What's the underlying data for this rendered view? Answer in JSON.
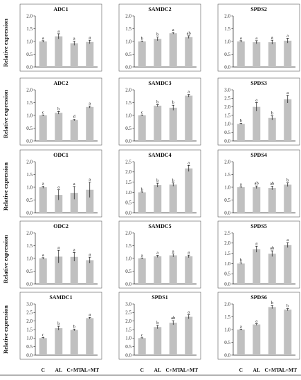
{
  "figure": {
    "ylabel": "Relative expression",
    "categories": [
      "C",
      "AL",
      "C+MT",
      "AL+MT"
    ],
    "bar_color": "#c0c0c0",
    "axis_color": "#222222"
  },
  "chart_data": [
    {
      "type": "bar",
      "title": "ADC1",
      "categories": [
        "C",
        "AL",
        "C+MT",
        "AL+MT"
      ],
      "values": [
        1.0,
        1.2,
        0.93,
        0.98
      ],
      "errors": [
        0.03,
        0.1,
        0.08,
        0.07
      ],
      "letters": [
        "a",
        "a",
        "a",
        "a"
      ],
      "ylim": [
        0,
        2.0
      ],
      "yticks": [
        "0.0",
        "0.5",
        "1.0",
        "1.5",
        "2.0"
      ],
      "row": 0,
      "col": 0
    },
    {
      "type": "bar",
      "title": "SAMDC2",
      "categories": [
        "C",
        "AL",
        "C+MT",
        "AL+MT"
      ],
      "values": [
        1.0,
        1.1,
        1.32,
        1.17
      ],
      "errors": [
        0.02,
        0.07,
        0.03,
        0.05
      ],
      "letters": [
        "b",
        "b",
        "a",
        "ab"
      ],
      "ylim": [
        0,
        2.0
      ],
      "yticks": [
        "0.0",
        "0.5",
        "1.0",
        "1.5",
        "2.0"
      ],
      "row": 0,
      "col": 1
    },
    {
      "type": "bar",
      "title": "SPDS2",
      "categories": [
        "C",
        "AL",
        "C+MT",
        "AL+MT"
      ],
      "values": [
        1.0,
        0.97,
        0.97,
        1.03
      ],
      "errors": [
        0.03,
        0.06,
        0.08,
        0.09
      ],
      "letters": [
        "a",
        "a",
        "a",
        "a"
      ],
      "ylim": [
        0,
        2.0
      ],
      "yticks": [
        "0.0",
        "0.5",
        "1.0",
        "1.5",
        "2.0"
      ],
      "row": 0,
      "col": 2
    },
    {
      "type": "bar",
      "title": "ADC2",
      "categories": [
        "C",
        "AL",
        "C+MT",
        "AL+MT"
      ],
      "values": [
        1.0,
        1.1,
        0.82,
        1.33
      ],
      "errors": [
        0.02,
        0.05,
        0.03,
        0.04
      ],
      "letters": [
        "c",
        "b",
        "d",
        "a"
      ],
      "ylim": [
        0,
        2.0
      ],
      "yticks": [
        "0.0",
        "0.5",
        "1.0",
        "1.5",
        "2.0"
      ],
      "row": 1,
      "col": 0
    },
    {
      "type": "bar",
      "title": "SAMDC3",
      "categories": [
        "C",
        "AL",
        "C+MT",
        "AL+MT"
      ],
      "values": [
        1.0,
        1.38,
        1.3,
        1.77
      ],
      "errors": [
        0.02,
        0.04,
        0.1,
        0.05
      ],
      "letters": [
        "c",
        "b",
        "b",
        "a"
      ],
      "ylim": [
        0,
        2.0
      ],
      "yticks": [
        "0.0",
        "0.5",
        "1.0",
        "1.5",
        "2.0"
      ],
      "row": 1,
      "col": 1
    },
    {
      "type": "bar",
      "title": "SPDS3",
      "categories": [
        "C",
        "AL",
        "C+MT",
        "AL+MT"
      ],
      "values": [
        1.0,
        2.0,
        1.35,
        2.45
      ],
      "errors": [
        0.03,
        0.25,
        0.12,
        0.22
      ],
      "letters": [
        "b",
        "a",
        "b",
        "a"
      ],
      "ylim": [
        0,
        3.0
      ],
      "yticks": [
        "0.0",
        "0.5",
        "1.0",
        "1.5",
        "2.0",
        "2.5",
        "3.0"
      ],
      "row": 1,
      "col": 2
    },
    {
      "type": "bar",
      "title": "ODC1",
      "categories": [
        "C",
        "AL",
        "C+MT",
        "AL+MT"
      ],
      "values": [
        1.0,
        0.7,
        0.78,
        0.9
      ],
      "errors": [
        0.04,
        0.2,
        0.25,
        0.3
      ],
      "letters": [
        "a",
        "a",
        "a",
        "a"
      ],
      "ylim": [
        0,
        2.0
      ],
      "yticks": [
        "0.0",
        "0.5",
        "1.0",
        "1.5",
        "2.0"
      ],
      "row": 2,
      "col": 0
    },
    {
      "type": "bar",
      "title": "SAMDC4",
      "categories": [
        "C",
        "AL",
        "C+MT",
        "AL+MT"
      ],
      "values": [
        1.0,
        1.35,
        1.38,
        2.17
      ],
      "errors": [
        0.02,
        0.1,
        0.08,
        0.15
      ],
      "letters": [
        "b",
        "b",
        "b",
        "a"
      ],
      "ylim": [
        0,
        2.5
      ],
      "yticks": [
        "0.0",
        "0.5",
        "1.0",
        "1.5",
        "2.0",
        "2.5"
      ],
      "row": 2,
      "col": 1
    },
    {
      "type": "bar",
      "title": "SPDS4",
      "categories": [
        "C",
        "AL",
        "C+MT",
        "AL+MT"
      ],
      "values": [
        1.0,
        1.0,
        0.97,
        1.1
      ],
      "errors": [
        0.02,
        0.05,
        0.07,
        0.07
      ],
      "letters": [
        "a",
        "ab",
        "ab",
        "b"
      ],
      "ylim": [
        0,
        2.0
      ],
      "yticks": [
        "0.0",
        "0.5",
        "1.0",
        "1.5",
        "2.0"
      ],
      "row": 2,
      "col": 2
    },
    {
      "type": "bar",
      "title": "ODC2",
      "categories": [
        "C",
        "AL",
        "C+MT",
        "AL+MT"
      ],
      "values": [
        1.0,
        1.07,
        1.06,
        0.93
      ],
      "errors": [
        0.03,
        0.25,
        0.17,
        0.12
      ],
      "letters": [
        "a",
        "a",
        "a",
        "a"
      ],
      "ylim": [
        0,
        2.0
      ],
      "yticks": [
        "0.0",
        "0.5",
        "1.0",
        "1.5",
        "2.0"
      ],
      "row": 3,
      "col": 0
    },
    {
      "type": "bar",
      "title": "SAMDC5",
      "categories": [
        "C",
        "AL",
        "C+MT",
        "AL+MT"
      ],
      "values": [
        1.0,
        1.08,
        1.12,
        1.08
      ],
      "errors": [
        0.02,
        0.04,
        0.06,
        0.05
      ],
      "letters": [
        "a",
        "a",
        "a",
        "a"
      ],
      "ylim": [
        0,
        2.0
      ],
      "yticks": [
        "0.0",
        "0.5",
        "1.0",
        "1.5",
        "2.0"
      ],
      "row": 3,
      "col": 1
    },
    {
      "type": "bar",
      "title": "SPDS5",
      "categories": [
        "C",
        "AL",
        "C+MT",
        "AL+MT"
      ],
      "values": [
        1.0,
        1.7,
        1.48,
        1.9
      ],
      "errors": [
        0.03,
        0.15,
        0.14,
        0.12
      ],
      "letters": [
        "b",
        "a",
        "ab",
        "a"
      ],
      "ylim": [
        0,
        2.5
      ],
      "yticks": [
        "0.0",
        "0.5",
        "1.0",
        "1.5",
        "2.0",
        "2.5"
      ],
      "row": 3,
      "col": 2
    },
    {
      "type": "bar",
      "title": "SAMDC1",
      "categories": [
        "C",
        "AL",
        "C+MT",
        "AL+MT"
      ],
      "values": [
        1.0,
        1.58,
        1.48,
        2.17
      ],
      "errors": [
        0.03,
        0.12,
        0.05,
        0.05
      ],
      "letters": [
        "c",
        "b",
        "b",
        "a"
      ],
      "ylim": [
        0,
        3.0
      ],
      "yticks": [
        "0.0",
        "0.5",
        "1.0",
        "1.5",
        "2.0",
        "2.5",
        "3.0"
      ],
      "row": 4,
      "col": 0
    },
    {
      "type": "bar",
      "title": "SPDS1",
      "categories": [
        "C",
        "AL",
        "C+MT",
        "AL+MT"
      ],
      "values": [
        1.0,
        1.65,
        1.9,
        2.25
      ],
      "errors": [
        0.02,
        0.1,
        0.12,
        0.12
      ],
      "letters": [
        "c",
        "b",
        "ab",
        "a"
      ],
      "ylim": [
        0,
        3.0
      ],
      "yticks": [
        "0.0",
        "0.5",
        "1.0",
        "1.5",
        "2.0",
        "2.5",
        "3.0"
      ],
      "row": 4,
      "col": 1
    },
    {
      "type": "bar",
      "title": "SPDS6",
      "categories": [
        "C",
        "AL",
        "C+MT",
        "AL+MT"
      ],
      "values": [
        1.0,
        1.2,
        1.88,
        1.78
      ],
      "errors": [
        0.02,
        0.03,
        0.06,
        0.04
      ],
      "letters": [
        "a",
        "a",
        "b",
        "b"
      ],
      "ylim": [
        0,
        2.0
      ],
      "yticks": [
        "0.0",
        "0.5",
        "1.0",
        "1.5",
        "2.0"
      ],
      "row": 4,
      "col": 2
    }
  ]
}
